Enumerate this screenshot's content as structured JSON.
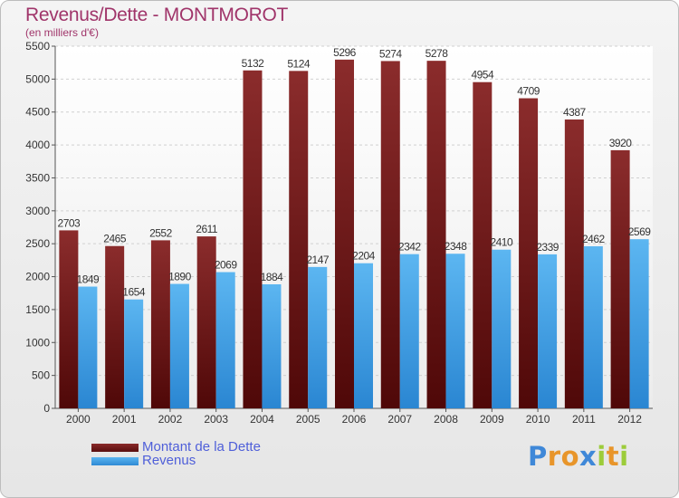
{
  "title": "Revenus/Dette - MONTMOROT",
  "subtitle": "(en milliers d'€)",
  "colors": {
    "dette": "#7a1a1a",
    "revenus": "#3d9ee6",
    "title": "#a0356a",
    "legend_text": "#4f5fd9"
  },
  "legend": {
    "dette_label": "Montant de la Dette",
    "revenus_label": "Revenus"
  },
  "brand": {
    "letters": [
      "P",
      "r",
      "o",
      "x",
      "i",
      "t",
      "i"
    ],
    "colors": [
      "#3f88d8",
      "#e8952a",
      "#e8952a",
      "#3f88d8",
      "#9ccc3a",
      "#e8952a",
      "#9ccc3a"
    ]
  },
  "chart_data": {
    "type": "bar",
    "categories": [
      "2000",
      "2001",
      "2002",
      "2003",
      "2004",
      "2005",
      "2006",
      "2007",
      "2008",
      "2009",
      "2010",
      "2011",
      "2012"
    ],
    "series": [
      {
        "name": "Montant de la Dette",
        "values": [
          2703,
          2465,
          2552,
          2611,
          5132,
          5124,
          5296,
          5274,
          5278,
          4954,
          4709,
          4387,
          3920
        ]
      },
      {
        "name": "Revenus",
        "values": [
          1849,
          1654,
          1890,
          2069,
          1884,
          2147,
          2204,
          2342,
          2348,
          2410,
          2339,
          2462,
          2569
        ]
      }
    ],
    "yticks": [
      0,
      500,
      1000,
      1500,
      2000,
      2500,
      3000,
      3500,
      4000,
      4500,
      5000,
      5500
    ],
    "ylim": [
      0,
      5500
    ],
    "grid": true,
    "legend_position": "bottom-left"
  }
}
